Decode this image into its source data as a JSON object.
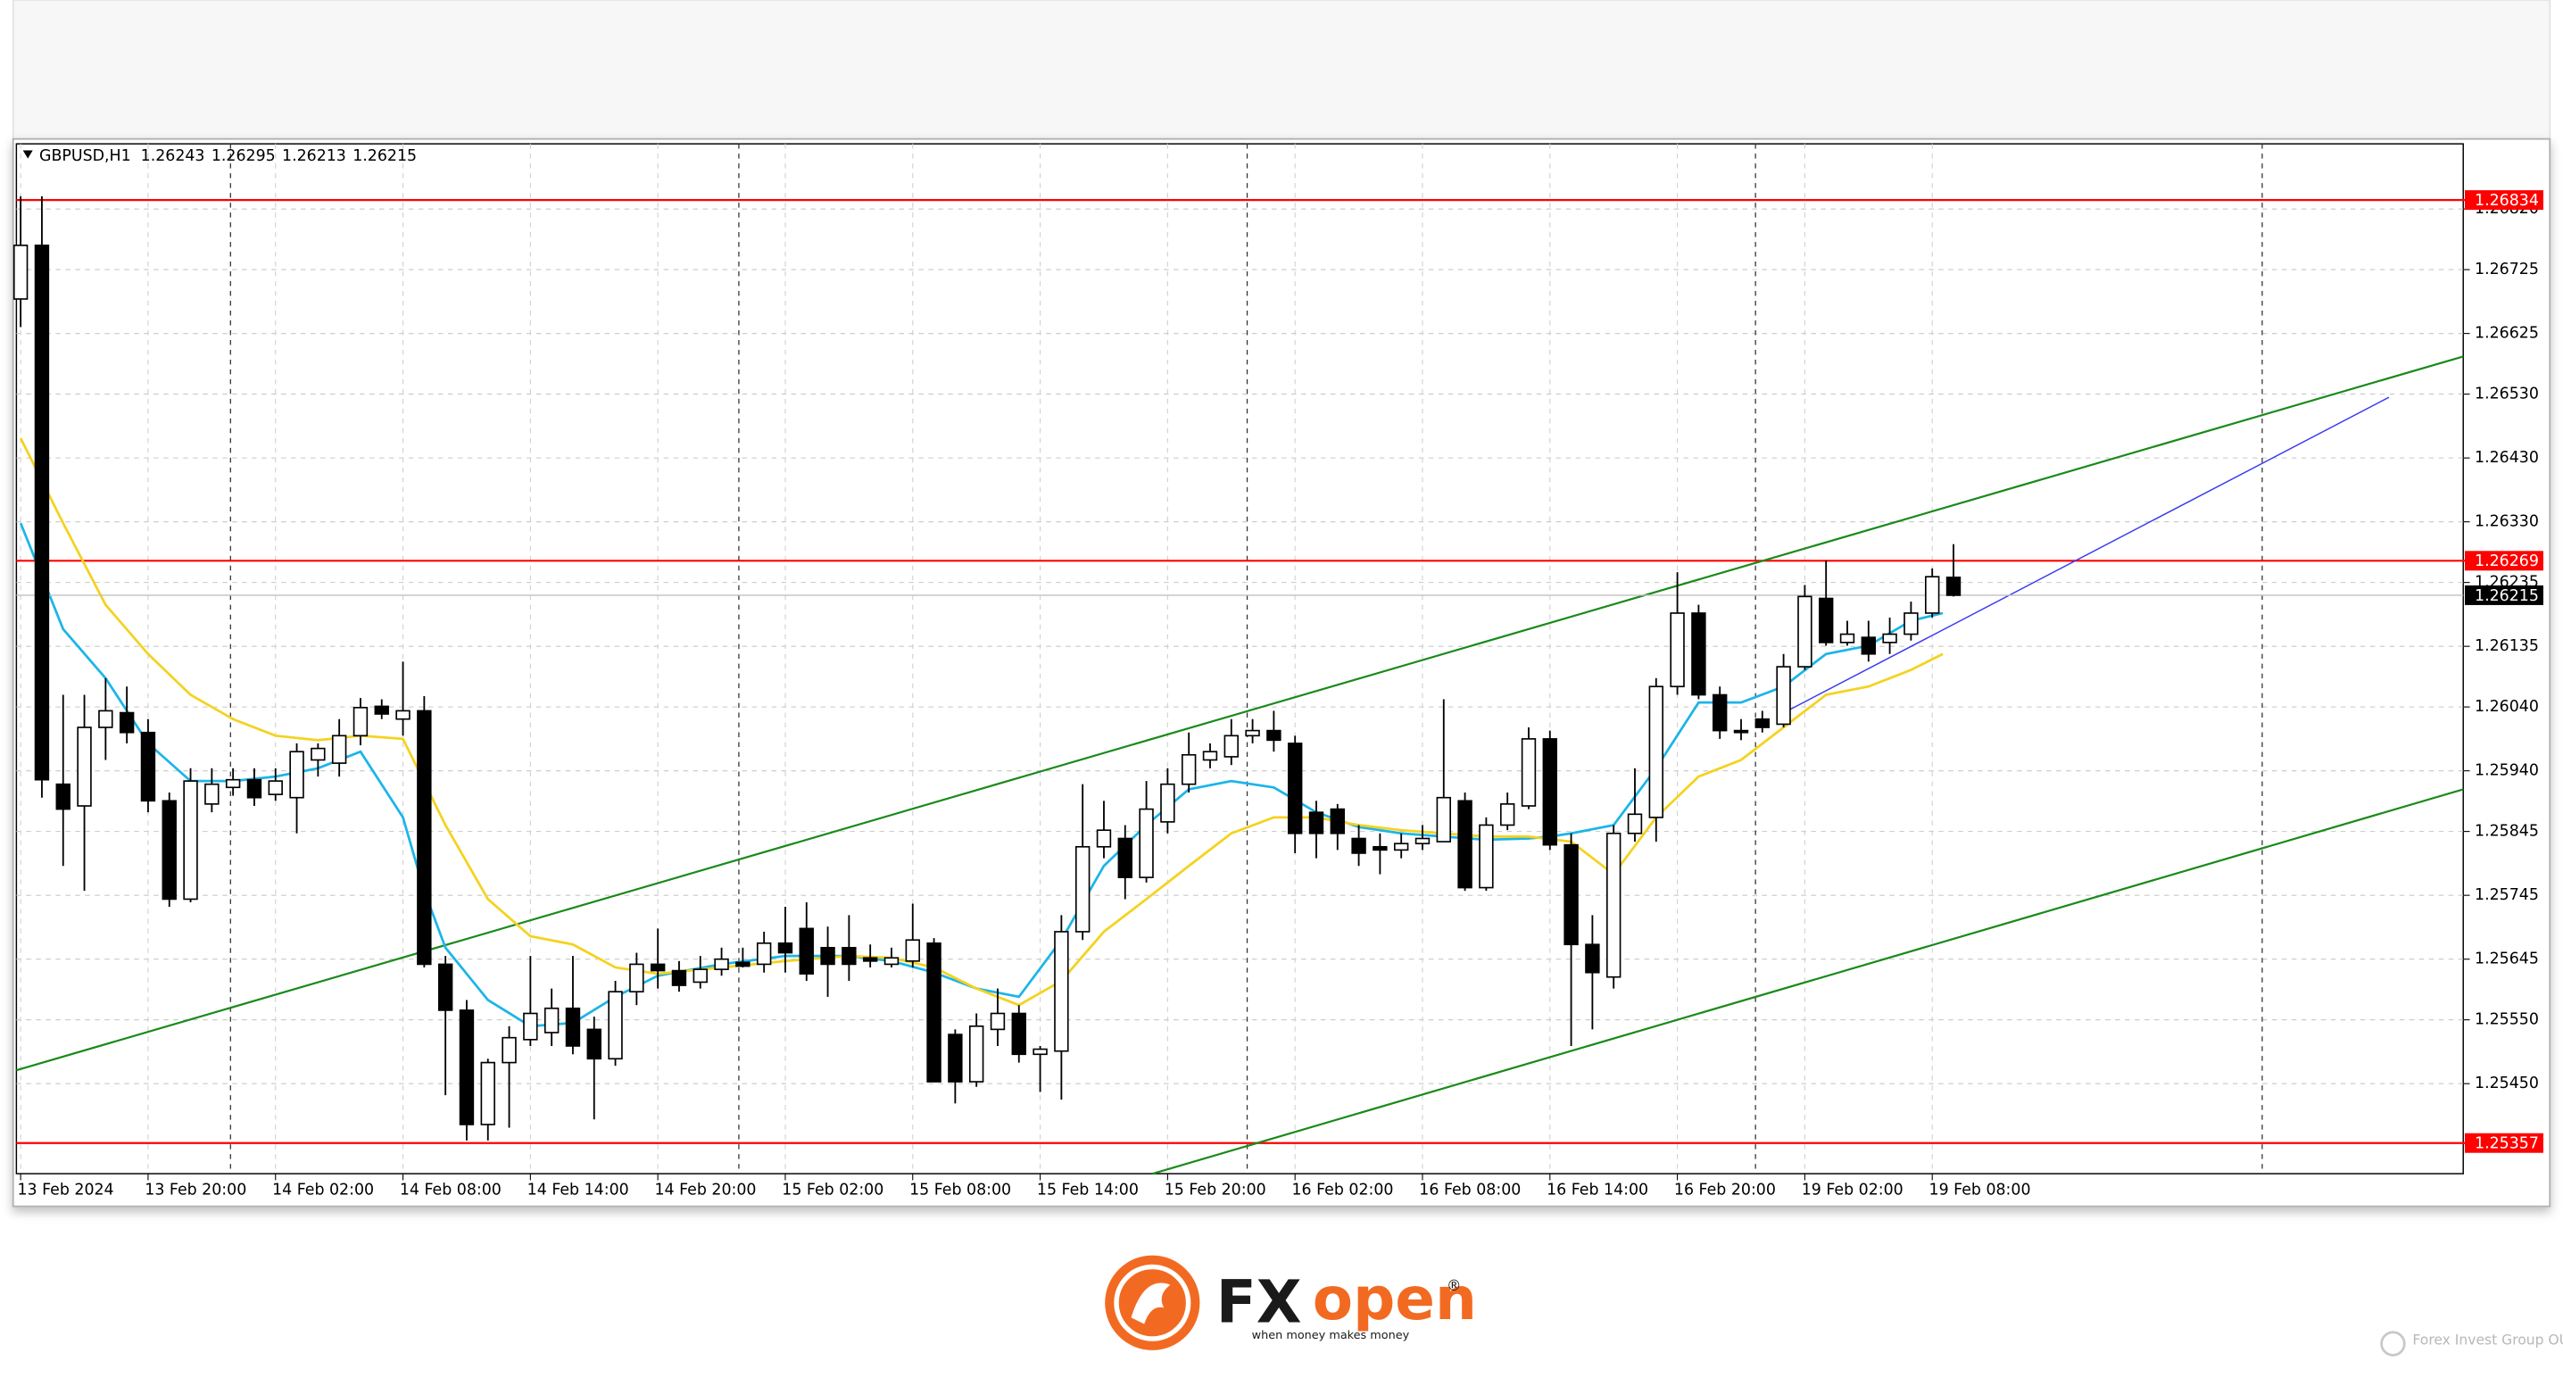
{
  "chart_data": {
    "type": "candlestick",
    "symbol": "GBPUSD,H1",
    "categories": [
      "13 Feb 2024",
      null,
      null,
      null,
      null,
      null,
      "13 Feb 20:00",
      null,
      null,
      null,
      null,
      null,
      "14 Feb 02:00",
      null,
      null,
      null,
      null,
      null,
      "14 Feb 08:00",
      null,
      null,
      null,
      null,
      null,
      "14 Feb 14:00",
      null,
      null,
      null,
      null,
      null,
      "14 Feb 20:00",
      null,
      null,
      null,
      null,
      null,
      "15 Feb 02:00",
      null,
      null,
      null,
      null,
      null,
      "15 Feb 08:00",
      null,
      null,
      null,
      null,
      null,
      "15 Feb 14:00",
      null,
      null,
      null,
      null,
      null,
      "15 Feb 20:00",
      null,
      null,
      null,
      null,
      null,
      "16 Feb 02:00",
      null,
      null,
      null,
      null,
      null,
      "16 Feb 08:00",
      null,
      null,
      null,
      null,
      null,
      "16 Feb 14:00",
      null,
      null,
      null,
      null,
      null,
      "16 Feb 20:00",
      null,
      null,
      null,
      null,
      null,
      "19 Feb 02:00",
      null,
      null,
      null,
      null,
      null,
      "19 Feb 08:00",
      null
    ],
    "open": [
      1.26679,
      1.26763,
      1.25919,
      1.25885,
      1.26008,
      1.26031,
      1.26,
      1.25893,
      1.25739,
      1.25888,
      1.25914,
      1.25926,
      1.25903,
      1.25898,
      1.25957,
      1.25952,
      1.25995,
      1.26041,
      1.26021,
      1.26034,
      1.25637,
      1.25565,
      1.25386,
      1.25483,
      1.25519,
      1.2553,
      1.25568,
      1.25535,
      1.25489,
      1.25594,
      1.25637,
      1.25627,
      1.25609,
      1.25629,
      1.2564,
      1.25637,
      1.2567,
      1.25693,
      1.25663,
      1.25663,
      1.25647,
      1.25637,
      1.25642,
      1.2567,
      1.25527,
      1.25453,
      1.25535,
      1.2556,
      1.25496,
      1.25501,
      1.25688,
      1.25821,
      1.25834,
      1.25773,
      1.2586,
      1.25919,
      1.25957,
      1.25962,
      1.25995,
      1.26003,
      1.25983,
      1.25875,
      1.2588,
      1.25834,
      1.25821,
      1.25816,
      1.25826,
      1.25829,
      1.25893,
      1.25757,
      1.25855,
      1.25885,
      1.2599,
      1.25824,
      1.25668,
      1.25617,
      1.25842,
      1.25867,
      1.26072,
      1.26187,
      1.26059,
      1.26003,
      1.26021,
      1.26013,
      1.26103,
      1.2621,
      1.26141,
      1.26149,
      1.26141,
      1.26154,
      1.26187,
      1.26243
    ],
    "high": [
      1.2684,
      1.2684,
      1.26059,
      1.26059,
      1.26085,
      1.26072,
      1.26021,
      1.25906,
      1.25944,
      1.25944,
      1.25944,
      1.25944,
      1.25944,
      1.25983,
      1.25983,
      1.26021,
      1.26054,
      1.26052,
      1.26111,
      1.26057,
      1.2565,
      1.25581,
      1.25489,
      1.2554,
      1.2565,
      1.25599,
      1.2565,
      1.25555,
      1.25611,
      1.25655,
      1.25693,
      1.25642,
      1.2565,
      1.25663,
      1.25663,
      1.25688,
      1.25727,
      1.25734,
      1.25696,
      1.25714,
      1.25668,
      1.25663,
      1.25732,
      1.25678,
      1.25535,
      1.2556,
      1.25599,
      1.25573,
      1.25509,
      1.25714,
      1.25919,
      1.25893,
      1.25855,
      1.25924,
      1.25944,
      1.26,
      1.25983,
      1.26021,
      1.26021,
      1.26034,
      1.25995,
      1.25893,
      1.25888,
      1.25855,
      1.25842,
      1.25842,
      1.25855,
      1.26052,
      1.25906,
      1.25867,
      1.25906,
      1.26008,
      1.26003,
      1.25842,
      1.25714,
      1.25855,
      1.25944,
      1.26085,
      1.26251,
      1.262,
      1.26072,
      1.26021,
      1.26034,
      1.26123,
      1.26231,
      1.26269,
      1.26175,
      1.26175,
      1.2618,
      1.26205,
      1.26257,
      1.26295
    ],
    "low": [
      1.26635,
      1.25898,
      1.25791,
      1.25752,
      1.25957,
      1.25983,
      1.25875,
      1.25727,
      1.25734,
      1.25875,
      1.25901,
      1.25885,
      1.25893,
      1.25842,
      1.25931,
      1.25931,
      1.2598,
      1.26021,
      1.25995,
      1.25632,
      1.25432,
      1.25361,
      1.25361,
      1.25381,
      1.25509,
      1.25509,
      1.25496,
      1.25394,
      1.25478,
      1.25573,
      1.25599,
      1.25594,
      1.25599,
      1.25619,
      1.25632,
      1.25624,
      1.25624,
      1.25611,
      1.25586,
      1.25611,
      1.25632,
      1.25632,
      1.25632,
      1.25453,
      1.25419,
      1.25445,
      1.25509,
      1.25483,
      1.25437,
      1.25425,
      1.25675,
      1.25803,
      1.25739,
      1.25765,
      1.25842,
      1.25906,
      1.25944,
      1.25949,
      1.25983,
      1.2597,
      1.25811,
      1.25803,
      1.25816,
      1.25791,
      1.25778,
      1.25803,
      1.25816,
      1.25829,
      1.25752,
      1.25752,
      1.25847,
      1.2588,
      1.25816,
      1.25509,
      1.25535,
      1.25599,
      1.25829,
      1.25829,
      1.26059,
      1.26052,
      1.2599,
      1.25988,
      1.26,
      1.26008,
      1.26098,
      1.26136,
      1.26136,
      1.26111,
      1.26123,
      1.26144,
      1.2618,
      1.26213
    ],
    "close": [
      1.26763,
      1.25926,
      1.2588,
      1.26008,
      1.26034,
      1.26,
      1.25893,
      1.25739,
      1.25924,
      1.25919,
      1.25926,
      1.25898,
      1.25924,
      1.2597,
      1.25975,
      1.25995,
      1.26039,
      1.26029,
      1.26034,
      1.25637,
      1.25565,
      1.25386,
      1.25483,
      1.25522,
      1.2556,
      1.25568,
      1.25509,
      1.25489,
      1.25594,
      1.25637,
      1.25627,
      1.25604,
      1.25629,
      1.25645,
      1.25634,
      1.2567,
      1.25655,
      1.25622,
      1.25637,
      1.25637,
      1.25642,
      1.25647,
      1.25675,
      1.25453,
      1.25453,
      1.2554,
      1.2556,
      1.25496,
      1.25504,
      1.25688,
      1.25821,
      1.25847,
      1.25773,
      1.2588,
      1.25919,
      1.25965,
      1.2597,
      1.25995,
      1.26003,
      1.25988,
      1.25842,
      1.25842,
      1.25842,
      1.25811,
      1.25816,
      1.25826,
      1.25834,
      1.25898,
      1.25757,
      1.25855,
      1.25888,
      1.2599,
      1.25824,
      1.25668,
      1.25624,
      1.25842,
      1.25872,
      1.26072,
      1.26187,
      1.26059,
      1.26003,
      1.26,
      1.26008,
      1.26103,
      1.26213,
      1.26141,
      1.26154,
      1.26123,
      1.26154,
      1.26187,
      1.26244,
      1.26215
    ],
    "up_color": "#ffffff",
    "down_color": "#000000",
    "overlays": [
      {
        "color": "#1cb5e8",
        "x": [
          0,
          2,
          4,
          6,
          8,
          10,
          12,
          14,
          16,
          18,
          19,
          20,
          22,
          24,
          26,
          28,
          30,
          33,
          36,
          39,
          41,
          43,
          45,
          47,
          49,
          51,
          53,
          55,
          57,
          59,
          61,
          63,
          65,
          67,
          69,
          71,
          72,
          73,
          75,
          77,
          79,
          81,
          83,
          85,
          87,
          89,
          90.5
        ],
        "values": [
          1.26328,
          1.26162,
          1.26085,
          1.25983,
          1.25924,
          1.25924,
          1.25931,
          1.25944,
          1.2597,
          1.25867,
          1.25752,
          1.25663,
          1.25581,
          1.2554,
          1.25545,
          1.25586,
          1.25619,
          1.25637,
          1.2565,
          1.2565,
          1.25642,
          1.25624,
          1.25599,
          1.25586,
          1.25675,
          1.25791,
          1.25855,
          1.25911,
          1.25924,
          1.25914,
          1.25875,
          1.25852,
          1.25842,
          1.25837,
          1.25832,
          1.25834,
          1.25837,
          1.25842,
          1.25855,
          1.25944,
          1.26047,
          1.26047,
          1.26072,
          1.26123,
          1.26136,
          1.26175,
          1.26187
        ]
      },
      {
        "color": "#f5d21f",
        "x": [
          0,
          2,
          4,
          6,
          8,
          10,
          12,
          14,
          16,
          18,
          20,
          22,
          24,
          26,
          28,
          30,
          33,
          36,
          39,
          41,
          43,
          45,
          47,
          49,
          51,
          53,
          55,
          57,
          59,
          61,
          63,
          65,
          67,
          69,
          71,
          73,
          75,
          77,
          79,
          81,
          83,
          85,
          87,
          89,
          90.5
        ],
        "values": [
          1.26461,
          1.26328,
          1.262,
          1.26123,
          1.26059,
          1.26021,
          1.25995,
          1.25988,
          1.25995,
          1.2599,
          1.25855,
          1.25739,
          1.25681,
          1.25668,
          1.25632,
          1.25622,
          1.25632,
          1.25642,
          1.2565,
          1.25647,
          1.25632,
          1.25599,
          1.25573,
          1.25611,
          1.25688,
          1.25739,
          1.25791,
          1.25842,
          1.25867,
          1.25867,
          1.25855,
          1.25847,
          1.25842,
          1.25837,
          1.25837,
          1.25829,
          1.25778,
          1.25867,
          1.25931,
          1.25957,
          1.26008,
          1.26059,
          1.26072,
          1.26098,
          1.26123
        ]
      }
    ],
    "trendlines": [
      {
        "color": "#1a8a1a",
        "x": [
          -0.2,
          115
        ],
        "y": [
          1.25471,
          1.26589
        ]
      },
      {
        "color": "#1a8a1a",
        "x": [
          53.3,
          115
        ],
        "y": [
          1.25309,
          1.25911
        ]
      },
      {
        "color": "#3a3af0",
        "x": [
          82.9,
          111.5
        ],
        "y": [
          1.26029,
          1.26525
        ]
      }
    ],
    "levels": [
      1.26834,
      1.26269,
      1.25357
    ],
    "level_color": "#ff0000",
    "last_price_color": "#000000",
    "xlim": [
      -0.2,
      115
    ],
    "ylim": [
      1.25309,
      1.26922
    ],
    "yticks": [
      {
        "value": 1.2682,
        "label": "1.26820"
      },
      1.26725,
      1.26625,
      {
        "value": 1.2653,
        "label": "1.26530"
      },
      {
        "value": 1.2643,
        "label": "1.26430"
      },
      {
        "value": 1.2633,
        "label": "1.26330"
      },
      1.26235,
      1.26135,
      {
        "value": 1.2604,
        "label": "1.26040"
      },
      {
        "value": 1.2594,
        "label": "1.25940"
      },
      1.25845,
      1.25745,
      1.25645,
      {
        "value": 1.2555,
        "label": "1.25550"
      },
      {
        "value": 1.2545,
        "label": "1.25450"
      }
    ],
    "grid": true
  },
  "branding": {
    "logo_fx": "FX",
    "logo_open": "open",
    "registered": "®",
    "tagline": "when money makes money",
    "footer": "Forex Invest Group OU"
  }
}
